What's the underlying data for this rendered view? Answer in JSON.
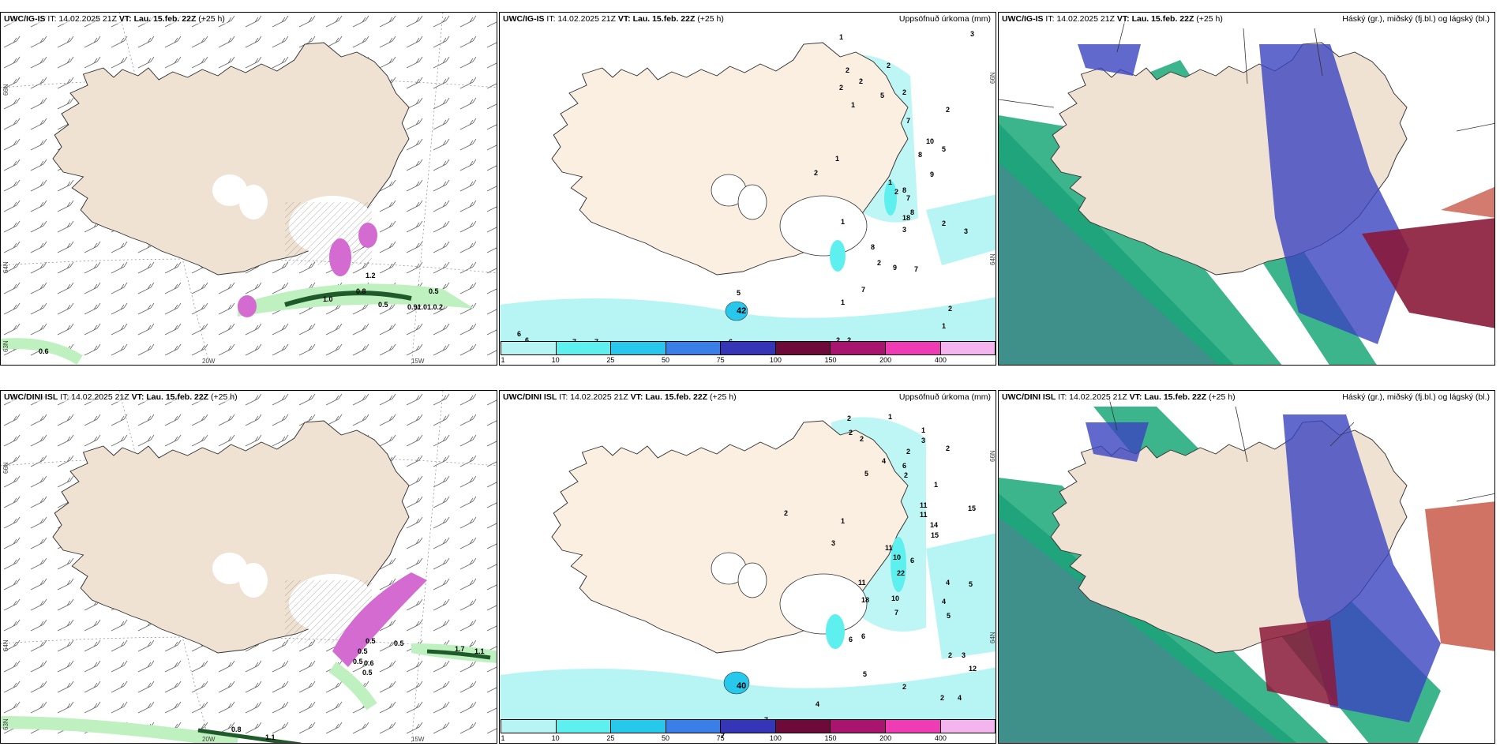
{
  "panels": [
    {
      "id": "p1",
      "model": "UWC/IG-IS",
      "it": "IT: 14.02.2025 21Z",
      "vt_label": "VT:",
      "vt": "Lau. 15.feb. 22Z",
      "lead": "(+25 h)",
      "right_title": "",
      "lat_labels": [
        "66N",
        "64N",
        "63N"
      ],
      "lon_labels": [
        "20W",
        "15W"
      ],
      "values": [
        "1.2",
        "0.8",
        "1.0",
        "0.5",
        "0.5",
        "0.91.01.0.2",
        "0.6"
      ]
    },
    {
      "id": "p2",
      "model": "UWC/IG-IS",
      "it": "IT: 14.02.2025 21Z",
      "vt_label": "VT:",
      "vt": "Lau. 15.feb. 22Z",
      "lead": "(+25 h)",
      "right_title": "Uppsöfnuð úrkoma (mm)",
      "lat_labels": [
        "66N",
        "64N"
      ],
      "values": [
        "1",
        "3",
        "2",
        "2",
        "2",
        "2",
        "5",
        "2",
        "1",
        "7",
        "2",
        "10",
        "5",
        "8",
        "9",
        "8",
        "1",
        "2",
        "1",
        "2",
        "7",
        "8",
        "1",
        "18",
        "3",
        "2",
        "3",
        "8",
        "2",
        "9",
        "7",
        "7",
        "1",
        "2",
        "6",
        "6",
        "7",
        "7",
        "6",
        "2",
        "2",
        "1",
        "5",
        "42"
      ],
      "colorbar": {
        "colors": [
          "#b7f5f5",
          "#5ef0ee",
          "#28c8ec",
          "#3a7ee8",
          "#3535b8",
          "#6e0a3a",
          "#a8146e",
          "#f03cb4",
          "#f4b4ee"
        ],
        "ticks": [
          "1",
          "10",
          "25",
          "50",
          "75",
          "100",
          "150",
          "200",
          "400"
        ]
      }
    },
    {
      "id": "p3",
      "model": "UWC/IG-IS",
      "it": "IT: 14.02.2025 21Z",
      "vt_label": "VT:",
      "vt": "Lau. 15.feb. 22Z",
      "lead": "(+25 h)",
      "right_title": "Háský (gr.), miðský (fj.bl.) og lágský (bl.)"
    },
    {
      "id": "p4",
      "model": "UWC/DINI ISL",
      "it": "IT: 14.02.2025 21Z",
      "vt_label": "VT:",
      "vt": "Lau. 15.feb. 22Z",
      "lead": "(+25 h)",
      "right_title": "",
      "lat_labels": [
        "66N",
        "64N",
        "63N"
      ],
      "lon_labels": [
        "20W",
        "15W"
      ],
      "values": [
        "0.5",
        "0.5",
        "0.5",
        "0.6",
        "0.5",
        "0.5",
        "1.7",
        "1.1",
        "0.8",
        "1.1"
      ]
    },
    {
      "id": "p5",
      "model": "UWC/DINI ISL",
      "it": "IT: 14.02.2025 21Z",
      "vt_label": "VT:",
      "vt": "Lau. 15.feb. 22Z",
      "lead": "(+25 h)",
      "right_title": "Uppsöfnuð úrkoma (mm)",
      "lat_labels": [
        "66N",
        "64N"
      ],
      "values": [
        "2",
        "1",
        "2",
        "2",
        "1",
        "3",
        "2",
        "2",
        "4",
        "6",
        "5",
        "2",
        "1",
        "11",
        "11",
        "14",
        "15",
        "15",
        "2",
        "1",
        "3",
        "11",
        "10",
        "6",
        "22",
        "11",
        "4",
        "5",
        "18",
        "10",
        "4",
        "5",
        "6",
        "6",
        "7",
        "2",
        "2",
        "4",
        "5",
        "2",
        "3",
        "12",
        "7",
        "7",
        "5",
        "4",
        "2",
        "40"
      ],
      "colorbar": {
        "colors": [
          "#b7f5f5",
          "#5ef0ee",
          "#28c8ec",
          "#3a7ee8",
          "#3535b8",
          "#6e0a3a",
          "#a8146e",
          "#f03cb4",
          "#f4b4ee"
        ],
        "ticks": [
          "1",
          "10",
          "25",
          "50",
          "75",
          "100",
          "150",
          "200",
          "400"
        ]
      }
    },
    {
      "id": "p6",
      "model": "UWC/DINI ISL",
      "it": "IT: 14.02.2025 21Z",
      "vt_label": "VT:",
      "vt": "Lau. 15.feb. 22Z",
      "lead": "(+25 h)",
      "right_title": "Háský (gr.), miðský (fj.bl.) og lágský (bl.)"
    }
  ],
  "colors": {
    "land": "#efe2d2",
    "land_light": "#fbefe2",
    "snow": "#ffffff",
    "precip_pink": "#d46bd0",
    "precip_green": "#bff0bf",
    "precip_darkgreen": "#1f5a2a",
    "cyan_precip": "#b7f5f5",
    "cloud_high": "#1aa878",
    "cloud_mid": "#3a44c0",
    "cloud_low": "#8a1a3a",
    "cloud_sea": "#3f8f8a"
  }
}
